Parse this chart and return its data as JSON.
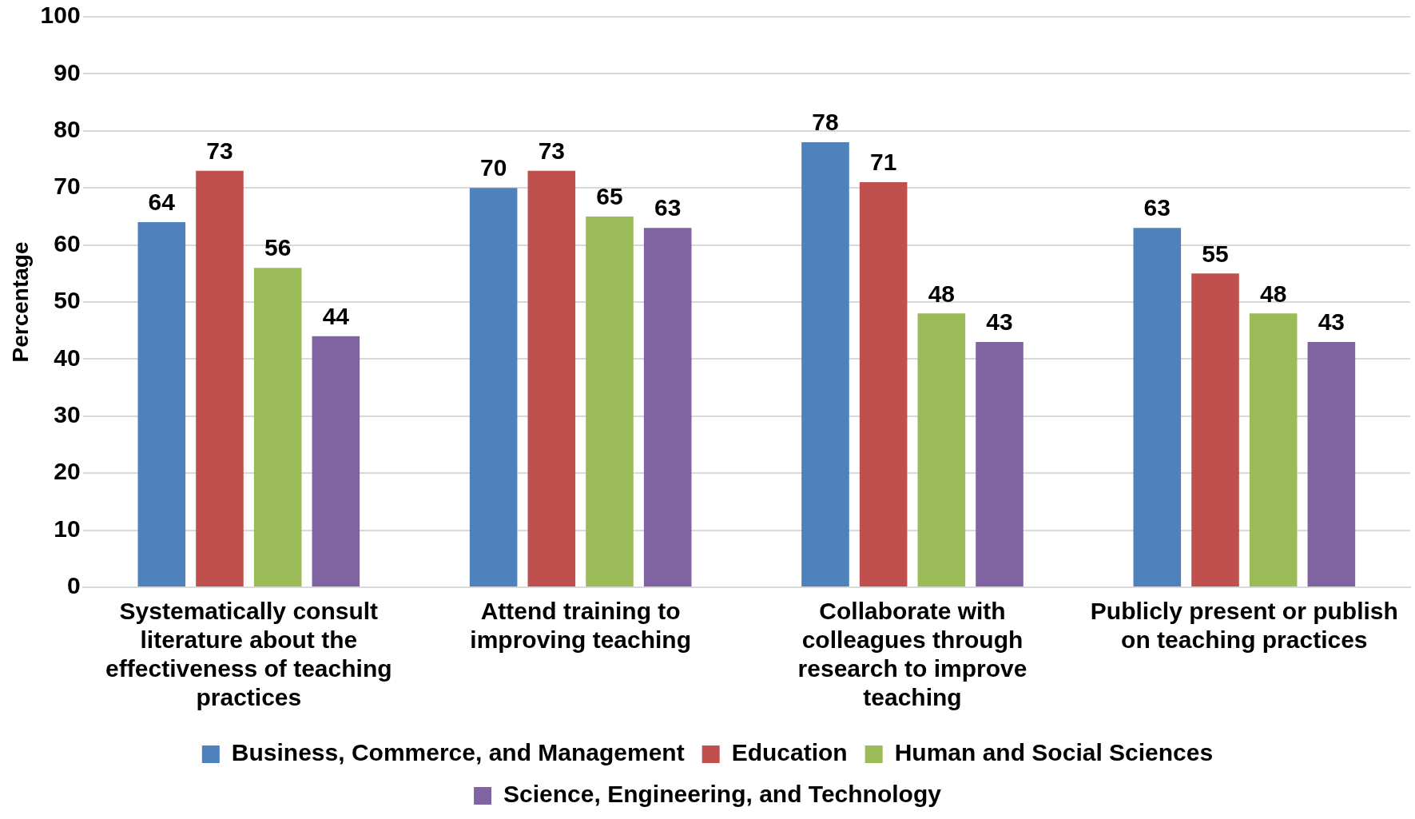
{
  "chart_data": {
    "type": "bar",
    "ylabel": "Percentage",
    "categories": [
      "Systematically consult literature about the effectiveness of teaching practices",
      "Attend training to improving teaching",
      "Collaborate with colleagues through research to improve teaching",
      "Publicly present or publish on teaching practices"
    ],
    "series": [
      {
        "name": "Business, Commerce, and Management",
        "color": "#4f81bd",
        "values": [
          64,
          70,
          78,
          63
        ]
      },
      {
        "name": "Education",
        "color": "#c0504d",
        "values": [
          73,
          73,
          71,
          55
        ]
      },
      {
        "name": "Human and Social Sciences",
        "color": "#9bbb59",
        "values": [
          56,
          65,
          48,
          48
        ]
      },
      {
        "name": "Science, Engineering, and Technology",
        "color": "#8064a2",
        "values": [
          44,
          63,
          43,
          43
        ]
      }
    ],
    "ylim": [
      0,
      100
    ],
    "yticks": [
      0,
      10,
      20,
      30,
      40,
      50,
      60,
      70,
      80,
      90,
      100
    ],
    "grid": "y",
    "legend": "bottom",
    "data_labels": true
  }
}
